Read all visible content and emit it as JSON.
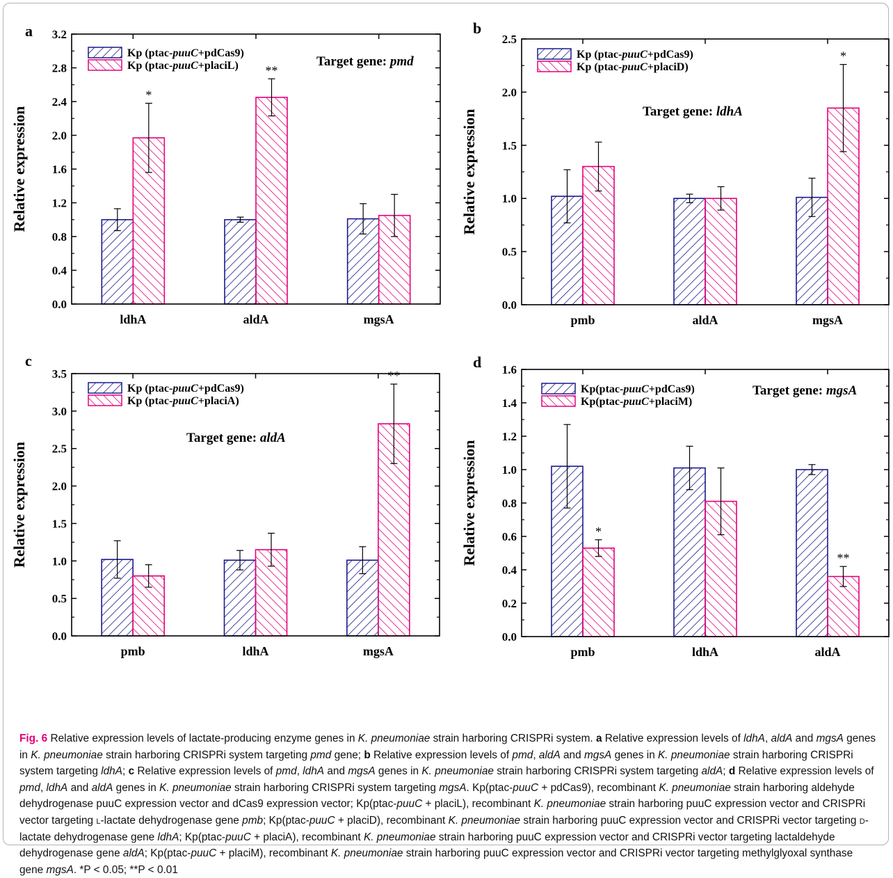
{
  "colors": {
    "series1": "#1a1a8c",
    "series2": "#e6007a",
    "caption_label": "#e3007a"
  },
  "chart_data": [
    {
      "panel": "a",
      "type": "bar",
      "categories": [
        "ldhA",
        "aldA",
        "mgsA"
      ],
      "series": [
        {
          "name_prefix": "Kp (ptac-",
          "name_italic": "puuC",
          "name_suffix": "+pdCas9)",
          "values": [
            1.0,
            1.0,
            1.01
          ],
          "errors": [
            0.13,
            0.03,
            0.18
          ],
          "significance": [
            "",
            "",
            ""
          ]
        },
        {
          "name_prefix": "Kp (ptac-",
          "name_italic": "puuC",
          "name_suffix": "+placiL)",
          "values": [
            1.97,
            2.45,
            1.05
          ],
          "errors": [
            0.41,
            0.22,
            0.25
          ],
          "significance": [
            "*",
            "**",
            ""
          ]
        }
      ],
      "target_label": "Target gene: ",
      "target_gene": "pmd",
      "ylabel": "Relative expression",
      "ylim": [
        0,
        3.2
      ],
      "yticks": [
        "0.0",
        "0.4",
        "0.8",
        "1.2",
        "1.6",
        "2.0",
        "2.4",
        "2.8",
        "3.2"
      ],
      "legend_position": "top-left"
    },
    {
      "panel": "b",
      "type": "bar",
      "categories": [
        "pmb",
        "aldA",
        "mgsA"
      ],
      "series": [
        {
          "name_prefix": "Kp (ptac-",
          "name_italic": "puuC",
          "name_suffix": "+pdCas9)",
          "values": [
            1.02,
            1.0,
            1.01
          ],
          "errors": [
            0.25,
            0.04,
            0.18
          ],
          "significance": [
            "",
            "",
            ""
          ]
        },
        {
          "name_prefix": "Kp (ptac-",
          "name_italic": "puuC",
          "name_suffix": "+placiD)",
          "values": [
            1.3,
            1.0,
            1.85
          ],
          "errors": [
            0.23,
            0.11,
            0.41
          ],
          "significance": [
            "",
            "",
            "*"
          ]
        }
      ],
      "target_label": "Target gene: ",
      "target_gene": "ldhA",
      "ylabel": "Relative expression",
      "ylim": [
        0,
        2.5
      ],
      "yticks": [
        "0.0",
        "0.5",
        "1.0",
        "1.5",
        "2.0",
        "2.5"
      ],
      "legend_position": "top-left"
    },
    {
      "panel": "c",
      "type": "bar",
      "categories": [
        "pmb",
        "ldhA",
        "mgsA"
      ],
      "series": [
        {
          "name_prefix": "Kp (ptac-",
          "name_italic": "puuC",
          "name_suffix": "+pdCas9)",
          "values": [
            1.02,
            1.01,
            1.01
          ],
          "errors": [
            0.25,
            0.13,
            0.18
          ],
          "significance": [
            "",
            "",
            ""
          ]
        },
        {
          "name_prefix": "Kp (ptac-",
          "name_italic": "puuC",
          "name_suffix": "+placiA)",
          "values": [
            0.8,
            1.15,
            2.83
          ],
          "errors": [
            0.15,
            0.22,
            0.53
          ],
          "significance": [
            "",
            "",
            "**"
          ]
        }
      ],
      "target_label": "Target gene: ",
      "target_gene": "aldA",
      "ylabel": "Relative expression",
      "ylim": [
        0,
        3.5
      ],
      "yticks": [
        "0.0",
        "0.5",
        "1.0",
        "1.5",
        "2.0",
        "2.5",
        "3.0",
        "3.5"
      ],
      "legend_position": "top-left"
    },
    {
      "panel": "d",
      "type": "bar",
      "categories": [
        "pmb",
        "ldhA",
        "aldA"
      ],
      "series": [
        {
          "name_prefix": "Kp(ptac-",
          "name_italic": "puuC",
          "name_suffix": "+pdCas9)",
          "values": [
            1.02,
            1.01,
            1.0
          ],
          "errors": [
            0.25,
            0.13,
            0.03
          ],
          "significance": [
            "",
            "",
            ""
          ]
        },
        {
          "name_prefix": "Kp(ptac-",
          "name_italic": "puuC",
          "name_suffix": "+placiM)",
          "values": [
            0.53,
            0.81,
            0.36
          ],
          "errors": [
            0.05,
            0.2,
            0.06
          ],
          "significance": [
            "*",
            "",
            "**"
          ]
        }
      ],
      "target_label": "Target gene: ",
      "target_gene": "mgsA",
      "ylabel": "Relative expression",
      "ylim": [
        0,
        1.6
      ],
      "yticks": [
        "0.0",
        "0.2",
        "0.4",
        "0.6",
        "0.8",
        "1.0",
        "1.2",
        "1.4",
        "1.6"
      ],
      "legend_position": "top-left"
    }
  ],
  "caption": {
    "label": "Fig. 6",
    "segments": [
      {
        "t": "Relative expression levels of lactate-producing enzyme genes in "
      },
      {
        "t": "K. pneumoniae",
        "i": true
      },
      {
        "t": " strain harboring CRISPRi system. "
      },
      {
        "t": "a",
        "b": true
      },
      {
        "t": " Relative expression levels of "
      },
      {
        "t": "ldhA",
        "i": true
      },
      {
        "t": ", "
      },
      {
        "t": "aldA",
        "i": true
      },
      {
        "t": " and "
      },
      {
        "t": "mgsA",
        "i": true
      },
      {
        "t": " genes in "
      },
      {
        "t": "K. pneumoniae",
        "i": true
      },
      {
        "t": " strain harboring CRISPRi system targeting "
      },
      {
        "t": "pmd",
        "i": true
      },
      {
        "t": " gene; "
      },
      {
        "t": "b",
        "b": true
      },
      {
        "t": " Relative expression levels of "
      },
      {
        "t": "pmd",
        "i": true
      },
      {
        "t": ", "
      },
      {
        "t": "aldA",
        "i": true
      },
      {
        "t": " and "
      },
      {
        "t": "mgsA",
        "i": true
      },
      {
        "t": " genes in "
      },
      {
        "t": "K. pneumoniae",
        "i": true
      },
      {
        "t": " strain harboring CRISPRi system targeting "
      },
      {
        "t": "ldhA",
        "i": true
      },
      {
        "t": "; "
      },
      {
        "t": "c",
        "b": true
      },
      {
        "t": " Relative expression levels of "
      },
      {
        "t": "pmd",
        "i": true
      },
      {
        "t": ", "
      },
      {
        "t": "ldhA",
        "i": true
      },
      {
        "t": " and "
      },
      {
        "t": "mgsA",
        "i": true
      },
      {
        "t": " genes in "
      },
      {
        "t": "K. pneumoniae",
        "i": true
      },
      {
        "t": " strain harboring CRISPRi system targeting "
      },
      {
        "t": "aldA",
        "i": true
      },
      {
        "t": "; "
      },
      {
        "t": "d",
        "b": true
      },
      {
        "t": " Relative expression levels of "
      },
      {
        "t": "pmd",
        "i": true
      },
      {
        "t": ", "
      },
      {
        "t": "ldhA",
        "i": true
      },
      {
        "t": " and "
      },
      {
        "t": "aldA",
        "i": true
      },
      {
        "t": " genes in "
      },
      {
        "t": "K. pneumoniae",
        "i": true
      },
      {
        "t": " strain harboring CRISPRi system targeting "
      },
      {
        "t": "mgsA",
        "i": true
      },
      {
        "t": ". Kp(ptac-"
      },
      {
        "t": "puuC",
        "i": true
      },
      {
        "t": " + pdCas9), recombinant "
      },
      {
        "t": "K. pneumoniae",
        "i": true
      },
      {
        "t": " strain harboring aldehyde dehydrogenase puuC expression vector and dCas9 expression vector; Kp(ptac-"
      },
      {
        "t": "puuC",
        "i": true
      },
      {
        "t": " + placiL), recombinant "
      },
      {
        "t": "K. pneumoniae",
        "i": true
      },
      {
        "t": " strain harboring puuC expression vector and CRISPRi vector targeting "
      },
      {
        "t": "l",
        "sc": true
      },
      {
        "t": "-lactate dehydrogenase gene "
      },
      {
        "t": "pmb",
        "i": true
      },
      {
        "t": "; Kp(ptac-"
      },
      {
        "t": "puuC",
        "i": true
      },
      {
        "t": " + placiD), recombinant "
      },
      {
        "t": "K. pneumoniae",
        "i": true
      },
      {
        "t": " strain harboring puuC expression vector and CRISPRi vector targeting "
      },
      {
        "t": "d",
        "sc": true
      },
      {
        "t": "-lactate dehydrogenase gene "
      },
      {
        "t": "ldhA",
        "i": true
      },
      {
        "t": "; Kp(ptac-"
      },
      {
        "t": "puuC",
        "i": true
      },
      {
        "t": " + placiA), recombinant "
      },
      {
        "t": "K. pneumoniae",
        "i": true
      },
      {
        "t": " strain harboring puuC expression vector and CRISPRi vector targeting lactaldehyde dehydrogenase gene "
      },
      {
        "t": "aldA",
        "i": true
      },
      {
        "t": "; Kp(ptac-"
      },
      {
        "t": "puuC",
        "i": true
      },
      {
        "t": " + placiM), recombinant "
      },
      {
        "t": "K. pneumoniae",
        "i": true
      },
      {
        "t": " strain harboring puuC expression vector and CRISPRi vector targeting methylglyoxal synthase gene "
      },
      {
        "t": "mgsA",
        "i": true
      },
      {
        "t": ". *P < 0.05; **P < 0.01"
      }
    ]
  }
}
